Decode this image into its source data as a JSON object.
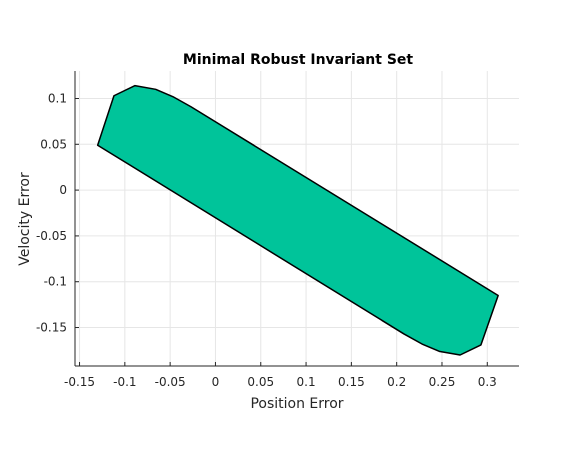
{
  "chart_data": {
    "type": "area",
    "title": "Minimal Robust Invariant Set",
    "xlabel": "Position Error",
    "ylabel": "Velocity Error",
    "xlim": [
      -0.155,
      0.335
    ],
    "ylim": [
      -0.192,
      0.13
    ],
    "xticks": [
      -0.15,
      -0.1,
      -0.05,
      0,
      0.05,
      0.1,
      0.15,
      0.2,
      0.25,
      0.3
    ],
    "xtick_labels": [
      "-0.15",
      "-0.1",
      "-0.05",
      "0",
      "0.05",
      "0.1",
      "0.15",
      "0.2",
      "0.25",
      "0.3"
    ],
    "yticks": [
      0.1,
      0.05,
      0,
      -0.05,
      -0.1,
      -0.15
    ],
    "ytick_labels": [
      "0.1",
      "0.05",
      "0",
      "-0.05",
      "-0.1",
      "-0.15"
    ],
    "grid": true,
    "series": [
      {
        "fill_color": "#00c49a",
        "edge_color": "#000000",
        "polygon": [
          [
            -0.13,
            0.049
          ],
          [
            -0.112,
            0.103
          ],
          [
            -0.089,
            0.114
          ],
          [
            -0.066,
            0.11
          ],
          [
            -0.047,
            0.102
          ],
          [
            -0.027,
            0.091
          ],
          [
            0.312,
            -0.115
          ],
          [
            0.293,
            -0.169
          ],
          [
            0.27,
            -0.18
          ],
          [
            0.247,
            -0.176
          ],
          [
            0.228,
            -0.168
          ],
          [
            0.208,
            -0.157
          ]
        ]
      }
    ]
  }
}
